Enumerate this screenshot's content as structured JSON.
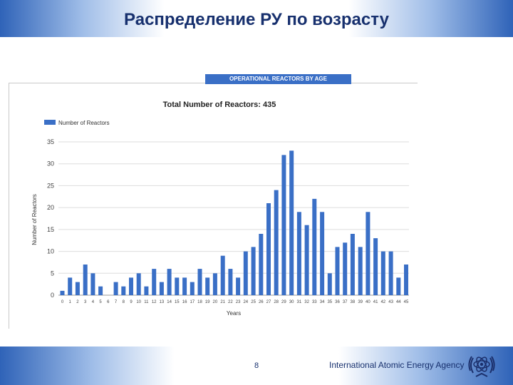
{
  "slide": {
    "title": "Распределение РУ по возрасту",
    "page_number": "8",
    "organization": "International Atomic Energy Agency"
  },
  "colors": {
    "bar": "#3a6fc6",
    "title": "#17306e",
    "grid": "#dddddd"
  },
  "chart_data": {
    "type": "bar",
    "header": "OPERATIONAL REACTORS BY AGE",
    "title": "Total Number of Reactors: 435",
    "legend": {
      "position": "top-left",
      "entries": [
        "Number of Reactors"
      ]
    },
    "xlabel": "Years",
    "ylabel": "Number of Reactors",
    "ylim": [
      0,
      35
    ],
    "yticks": [
      0,
      5,
      10,
      15,
      20,
      25,
      30,
      35
    ],
    "grid": true,
    "categories": [
      "0",
      "1",
      "2",
      "3",
      "4",
      "5",
      "6",
      "7",
      "8",
      "9",
      "10",
      "11",
      "12",
      "13",
      "14",
      "15",
      "16",
      "17",
      "18",
      "19",
      "20",
      "21",
      "22",
      "23",
      "24",
      "25",
      "26",
      "27",
      "28",
      "29",
      "30",
      "31",
      "32",
      "33",
      "34",
      "35",
      "36",
      "37",
      "38",
      "39",
      "40",
      "41",
      "42",
      "43",
      "44",
      "45"
    ],
    "series": [
      {
        "name": "Number of Reactors",
        "values": [
          1,
          4,
          3,
          7,
          5,
          2,
          0,
          3,
          2,
          4,
          5,
          2,
          6,
          3,
          6,
          4,
          4,
          3,
          6,
          4,
          5,
          9,
          6,
          4,
          10,
          11,
          14,
          21,
          24,
          32,
          33,
          19,
          16,
          22,
          19,
          5,
          11,
          12,
          14,
          11,
          19,
          13,
          10,
          10,
          4,
          7
        ]
      }
    ]
  }
}
